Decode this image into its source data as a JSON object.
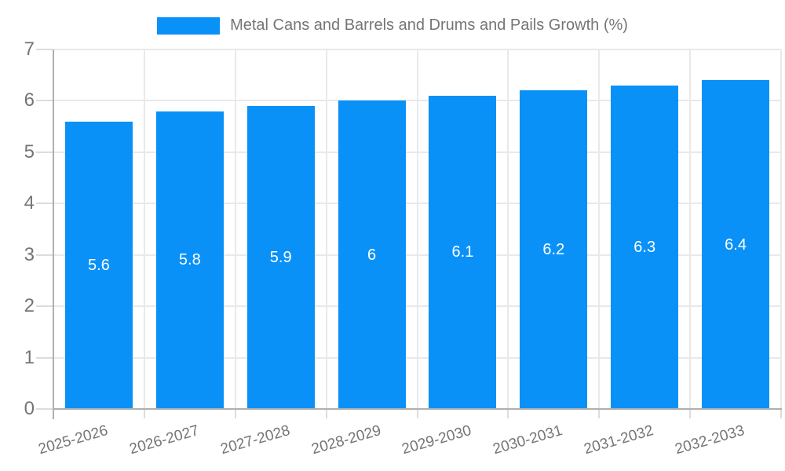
{
  "legend": {
    "label": "Metal Cans and Barrels and Drums and Pails Growth (%)",
    "swatch_color": "#0991F8"
  },
  "chart_data": {
    "type": "bar",
    "title": "Metal Cans and Barrels and Drums and Pails Growth (%)",
    "categories": [
      "2025-2026",
      "2026-2027",
      "2027-2028",
      "2028-2029",
      "2029-2030",
      "2030-2031",
      "2031-2032",
      "2032-2033"
    ],
    "values": [
      5.6,
      5.8,
      5.9,
      6,
      6.1,
      6.2,
      6.3,
      6.4
    ],
    "value_labels": [
      "5.6",
      "5.8",
      "5.9",
      "6",
      "6.1",
      "6.2",
      "6.3",
      "6.4"
    ],
    "xlabel": "",
    "ylabel": "",
    "ylim": [
      0,
      7
    ],
    "ytick_interval": 1,
    "ytick_labels": [
      "0",
      "1",
      "2",
      "3",
      "4",
      "5",
      "6",
      "7"
    ],
    "grid": true,
    "legend_position": "top-center",
    "value_labels_position": "center-inside-bar",
    "x_label_rotation_deg": -16,
    "colors": {
      "bar": "#0991F8",
      "value_label": "#FFFFFF",
      "axis_text": "#757575",
      "grid_line": "#E9E9E9",
      "axis_line": "#AFAFAF",
      "tick_line": "#DCDCDC"
    }
  }
}
